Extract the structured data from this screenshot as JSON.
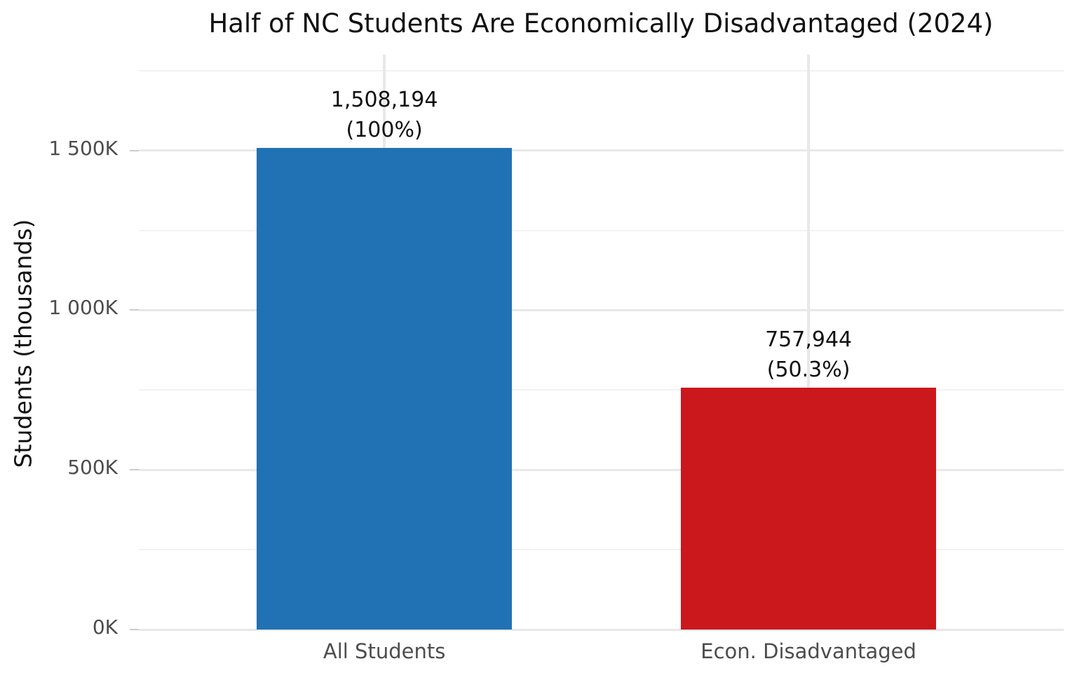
{
  "chart_data": {
    "type": "bar",
    "title": "Half of NC Students Are Economically Disadvantaged (2024)",
    "xlabel": "",
    "ylabel": "Students (thousands)",
    "categories": [
      "All Students",
      "Econ. Disadvantaged"
    ],
    "values": [
      1508194,
      757944
    ],
    "bar_labels": [
      {
        "line1": "1,508,194",
        "line2": "(100%)"
      },
      {
        "line1": "757,944",
        "line2": "(50.3%)"
      }
    ],
    "bar_colors": [
      "#2171b5",
      "#cb181d"
    ],
    "ylim": [
      0,
      1800000
    ],
    "ytick_values": [
      0,
      500000,
      1000000,
      1500000
    ],
    "ytick_labels": [
      "0K",
      "500K",
      "1 000K",
      "1 500K"
    ],
    "yminor_values": [
      250000,
      750000,
      1250000,
      1750000
    ],
    "legend": "none",
    "grid": {
      "horizontal_major": true,
      "horizontal_minor": true,
      "vertical_major_at_categories": true
    },
    "colors": {
      "background": "#ffffff",
      "title_text": "#111111",
      "axis_text": "#4d4d4d",
      "grid_major": "#e8e8e8",
      "grid_minor": "#f2f2f2",
      "tick_mark": "#cccccc"
    }
  }
}
